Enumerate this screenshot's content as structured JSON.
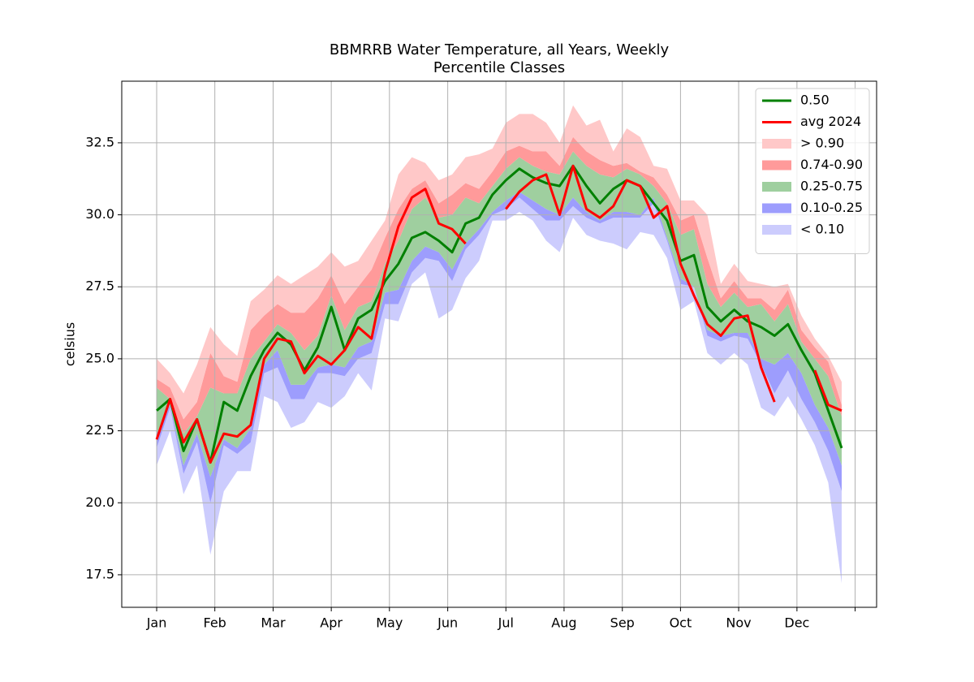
{
  "chart_data": {
    "type": "line",
    "title": [
      "BBMRRB Water Temperature, all Years, Weekly",
      "Percentile Classes"
    ],
    "y_label": "celsius",
    "x": [
      1,
      2,
      3,
      4,
      5,
      6,
      7,
      8,
      9,
      10,
      11,
      12,
      13,
      14,
      15,
      16,
      17,
      18,
      19,
      20,
      21,
      22,
      23,
      24,
      25,
      26,
      27,
      28,
      29,
      30,
      31,
      32,
      33,
      34,
      35,
      36,
      37,
      38,
      39,
      40,
      41,
      42,
      43,
      44,
      45,
      46,
      47,
      48,
      49,
      50,
      51,
      52
    ],
    "xlim": [
      -1.6,
      54.6
    ],
    "xticks": [
      {
        "value": 1,
        "label": "Jan"
      },
      {
        "value": 5.33,
        "label": "Feb"
      },
      {
        "value": 9.67,
        "label": "Mar"
      },
      {
        "value": 14,
        "label": "Apr"
      },
      {
        "value": 18.33,
        "label": "May"
      },
      {
        "value": 22.67,
        "label": "Jun"
      },
      {
        "value": 27,
        "label": "Jul"
      },
      {
        "value": 31.33,
        "label": "Aug"
      },
      {
        "value": 35.67,
        "label": "Sep"
      },
      {
        "value": 40,
        "label": "Oct"
      },
      {
        "value": 44.33,
        "label": "Nov"
      },
      {
        "value": 48.67,
        "label": "Dec"
      },
      {
        "value": 53
      }
    ],
    "ylim": [
      16.37,
      34.64
    ],
    "yticks": [
      17.5,
      {
        "value": 20,
        "label": "20.0"
      },
      22.5,
      {
        "value": 25,
        "label": "25.0"
      },
      27.5,
      {
        "value": 30,
        "label": "30.0"
      },
      32.5
    ],
    "grid": true,
    "legend": "upper right",
    "series": [
      {
        "name": "0.50",
        "color": "#008000",
        "values": [
          23.2,
          23.6,
          21.8,
          22.9,
          21.4,
          23.5,
          23.2,
          24.4,
          25.3,
          25.9,
          25.5,
          24.6,
          25.4,
          26.8,
          25.3,
          26.4,
          26.7,
          27.7,
          28.3,
          29.2,
          29.4,
          29.1,
          28.7,
          29.7,
          29.9,
          30.7,
          31.2,
          31.6,
          31.3,
          31.1,
          31.0,
          31.7,
          31.0,
          30.4,
          30.9,
          31.2,
          31.0,
          30.4,
          29.8,
          28.4,
          28.6,
          26.8,
          26.3,
          26.7,
          26.3,
          26.1,
          25.8,
          26.2,
          25.3,
          24.5,
          23.2,
          21.9
        ]
      },
      {
        "name": "avg 2024",
        "color": "#ff0000",
        "values": [
          22.2,
          23.6,
          22.1,
          22.9,
          21.4,
          22.4,
          22.3,
          22.7,
          25.0,
          25.7,
          25.6,
          24.5,
          25.1,
          24.8,
          25.3,
          26.1,
          25.7,
          28.0,
          29.6,
          30.6,
          30.9,
          29.7,
          29.5,
          29.0,
          null,
          null,
          30.2,
          30.8,
          31.2,
          31.4,
          30.0,
          31.7,
          30.2,
          29.9,
          30.3,
          31.2,
          31.0,
          29.9,
          30.3,
          28.3,
          27.2,
          26.2,
          25.8,
          26.4,
          26.5,
          24.7,
          23.5,
          null,
          null,
          24.6,
          23.4,
          23.2
        ]
      }
    ],
    "bands": [
      {
        "name": "< 0.10",
        "color": "#ccccfd",
        "lower": [
          21.3,
          22.5,
          20.3,
          21.3,
          18.2,
          20.4,
          21.1,
          21.1,
          23.7,
          23.5,
          22.6,
          22.8,
          23.5,
          23.3,
          23.7,
          24.5,
          23.9,
          26.4,
          26.3,
          27.6,
          28.0,
          26.4,
          26.7,
          27.8,
          28.4,
          29.8,
          29.8,
          30.1,
          29.8,
          29.1,
          28.7,
          29.9,
          29.3,
          29.1,
          29.0,
          28.8,
          29.4,
          29.3,
          28.5,
          26.7,
          27.0,
          25.2,
          24.8,
          25.2,
          24.8,
          23.3,
          23.0,
          23.7,
          22.9,
          22.0,
          20.7,
          17.2
        ],
        "values": [
          21.9,
          23.3,
          21.0,
          22.1,
          20.0,
          22.0,
          21.7,
          22.1,
          24.5,
          24.7,
          23.6,
          23.6,
          24.5,
          24.5,
          24.4,
          25.0,
          25.2,
          26.9,
          26.9,
          28.0,
          28.5,
          28.4,
          27.7,
          28.8,
          29.3,
          30.0,
          30.2,
          30.6,
          30.2,
          29.8,
          29.8,
          30.3,
          29.9,
          29.7,
          29.9,
          29.9,
          29.9,
          30.4,
          29.1,
          27.6,
          27.5,
          25.8,
          25.6,
          25.8,
          25.7,
          24.8,
          23.8,
          24.6,
          23.6,
          22.8,
          21.8,
          20.4
        ]
      },
      {
        "name": "0.10-0.25",
        "color": "#9d9dfd",
        "values": [
          22.4,
          23.4,
          21.3,
          22.4,
          20.9,
          22.2,
          21.9,
          22.6,
          24.8,
          25.3,
          24.1,
          24.1,
          24.7,
          24.8,
          24.7,
          25.4,
          25.6,
          27.3,
          27.4,
          28.4,
          28.9,
          28.7,
          28.1,
          29.0,
          29.5,
          30.1,
          30.5,
          30.8,
          30.5,
          30.2,
          30.0,
          30.6,
          30.1,
          29.8,
          30.1,
          30.1,
          30.0,
          30.6,
          29.2,
          27.8,
          27.5,
          26.0,
          25.8,
          25.9,
          25.9,
          25.0,
          24.8,
          25.2,
          24.5,
          23.4,
          22.6,
          21.3
        ]
      },
      {
        "name": "0.25-0.75",
        "color": "#9fcf9f",
        "values": [
          24.0,
          23.6,
          22.4,
          23.0,
          24.0,
          23.8,
          23.8,
          25.0,
          25.6,
          26.2,
          25.9,
          25.3,
          25.8,
          27.2,
          26.0,
          26.8,
          27.0,
          28.3,
          29.1,
          30.2,
          30.6,
          29.9,
          30.0,
          30.6,
          30.4,
          31.0,
          31.6,
          32.0,
          31.7,
          31.5,
          31.4,
          32.2,
          31.7,
          31.4,
          31.3,
          31.6,
          31.4,
          31.0,
          30.4,
          29.3,
          29.5,
          27.6,
          26.8,
          27.3,
          26.8,
          26.9,
          26.3,
          26.9,
          25.6,
          25.0,
          24.4,
          23.0
        ]
      },
      {
        "name": "0.74-0.90",
        "color": "#ff9a9a",
        "values": [
          24.3,
          24.0,
          22.9,
          23.5,
          25.2,
          24.4,
          24.2,
          26.0,
          26.5,
          26.9,
          26.6,
          26.6,
          27.1,
          27.9,
          26.9,
          27.5,
          28.1,
          29.2,
          30.2,
          30.9,
          31.2,
          30.4,
          30.7,
          31.1,
          30.9,
          31.5,
          32.2,
          32.4,
          32.2,
          32.2,
          31.7,
          32.7,
          32.2,
          31.9,
          31.7,
          31.8,
          31.5,
          31.3,
          30.7,
          29.8,
          30.0,
          28.5,
          27.1,
          27.7,
          27.1,
          27.1,
          26.7,
          27.4,
          26.0,
          25.4,
          24.9,
          23.4
        ]
      },
      {
        "name": "> 0.90",
        "color": "#ffc8c8",
        "values": [
          25.0,
          24.5,
          23.8,
          24.8,
          26.1,
          25.5,
          25.1,
          27.0,
          27.4,
          27.9,
          27.6,
          27.9,
          28.2,
          28.7,
          28.2,
          28.4,
          29.1,
          29.8,
          31.4,
          32.0,
          31.8,
          31.2,
          31.4,
          32.0,
          32.1,
          32.3,
          33.2,
          33.5,
          33.5,
          33.2,
          32.5,
          33.8,
          33.1,
          33.3,
          32.2,
          33.0,
          32.7,
          31.7,
          31.6,
          30.5,
          30.5,
          30.0,
          27.6,
          28.3,
          27.7,
          27.6,
          27.5,
          27.6,
          26.5,
          25.7,
          25.1,
          24.2
        ]
      }
    ]
  }
}
